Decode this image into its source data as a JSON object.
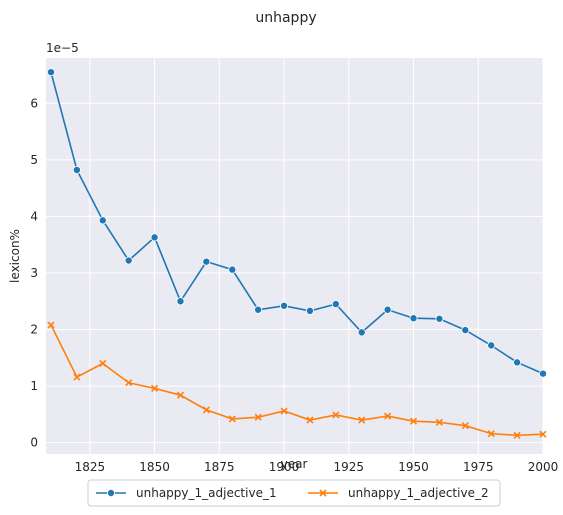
{
  "chart_data": {
    "type": "line",
    "title": "unhappy",
    "xlabel": "year",
    "ylabel": "lexicon%",
    "y_scale_label": "1e−5",
    "xlim": [
      1810,
      2000
    ],
    "ylim": [
      -0.2,
      6.8
    ],
    "x_ticks": [
      1825,
      1850,
      1875,
      1900,
      1925,
      1950,
      1975,
      2000
    ],
    "y_ticks": [
      0,
      1,
      2,
      3,
      4,
      5,
      6
    ],
    "grid": true,
    "legend_position": "bottom-center",
    "x": [
      1810,
      1820,
      1830,
      1840,
      1850,
      1860,
      1870,
      1880,
      1890,
      1900,
      1910,
      1920,
      1930,
      1940,
      1950,
      1960,
      1970,
      1980,
      1990,
      2000
    ],
    "series": [
      {
        "name": "unhappy_1_adjective_1",
        "color": "#1f77b4",
        "marker": "circle",
        "values": [
          6.55,
          4.82,
          3.93,
          3.22,
          3.63,
          2.5,
          3.2,
          3.06,
          2.35,
          2.42,
          2.33,
          2.45,
          1.95,
          2.35,
          2.2,
          2.19,
          1.99,
          1.72,
          1.42,
          1.22
        ]
      },
      {
        "name": "unhappy_1_adjective_2",
        "color": "#ff7f0e",
        "marker": "x",
        "values": [
          2.08,
          1.16,
          1.4,
          1.06,
          0.96,
          0.84,
          0.58,
          0.42,
          0.45,
          0.56,
          0.4,
          0.49,
          0.4,
          0.47,
          0.38,
          0.36,
          0.3,
          0.16,
          0.13,
          0.15
        ]
      }
    ]
  }
}
